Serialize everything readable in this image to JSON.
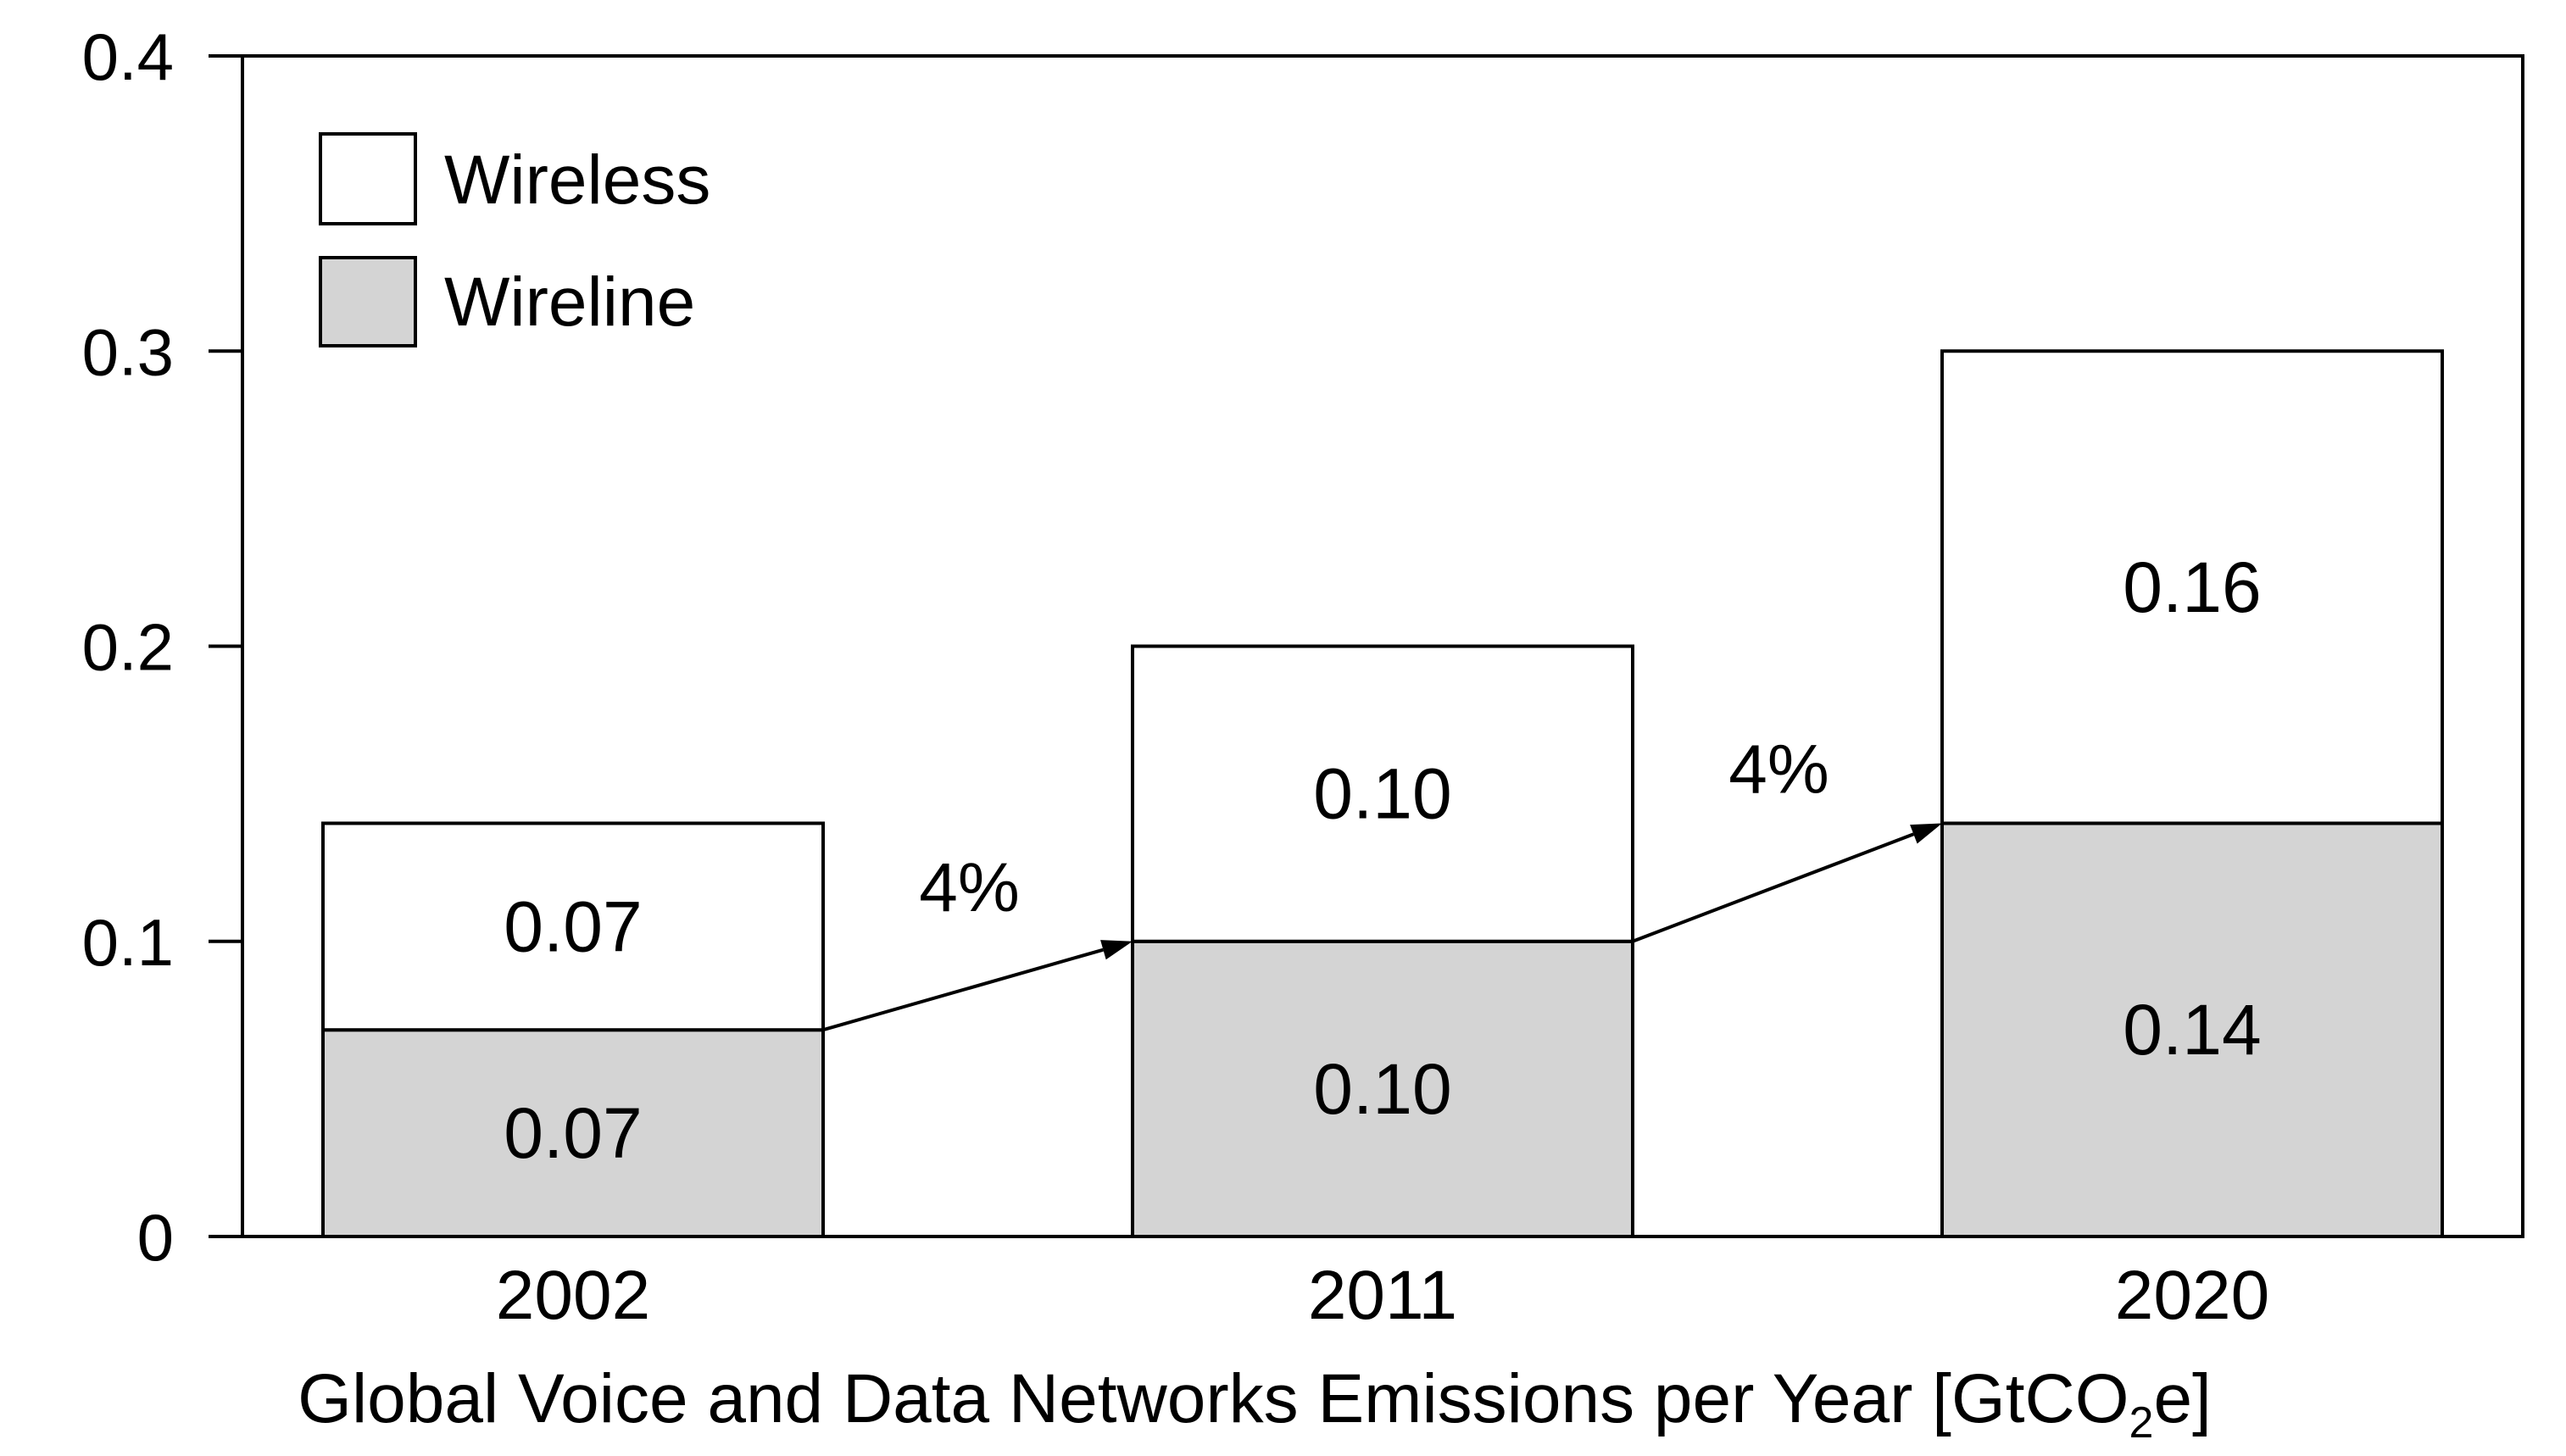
{
  "chart_data": {
    "type": "bar",
    "stacked": true,
    "categories": [
      "2002",
      "2011",
      "2020"
    ],
    "series": [
      {
        "name": "Wireline",
        "values": [
          0.07,
          0.1,
          0.14
        ],
        "labels": [
          "0.07",
          "0.10",
          "0.14"
        ],
        "color": "#d4d4d4"
      },
      {
        "name": "Wireless",
        "values": [
          0.07,
          0.1,
          0.16
        ],
        "labels": [
          "0.07",
          "0.10",
          "0.16"
        ],
        "color": "#ffffff"
      }
    ],
    "ylim": [
      0,
      0.4
    ],
    "yticks": [
      "0",
      "0.1",
      "0.2",
      "0.3",
      "0.4"
    ],
    "ytick_values": [
      0,
      0.1,
      0.2,
      0.3,
      0.4
    ],
    "xlabel": "Global Voice and Data Networks Emissions per Year [GtCO",
    "xlabel_sub": "2",
    "xlabel_suffix": "e]",
    "legend": {
      "position": "top-left",
      "items": [
        "Wireless",
        "Wireline"
      ]
    },
    "growth_annotations": [
      {
        "text": "4%",
        "from": 0,
        "to": 1
      },
      {
        "text": "4%",
        "from": 1,
        "to": 2
      }
    ],
    "grid": false
  }
}
